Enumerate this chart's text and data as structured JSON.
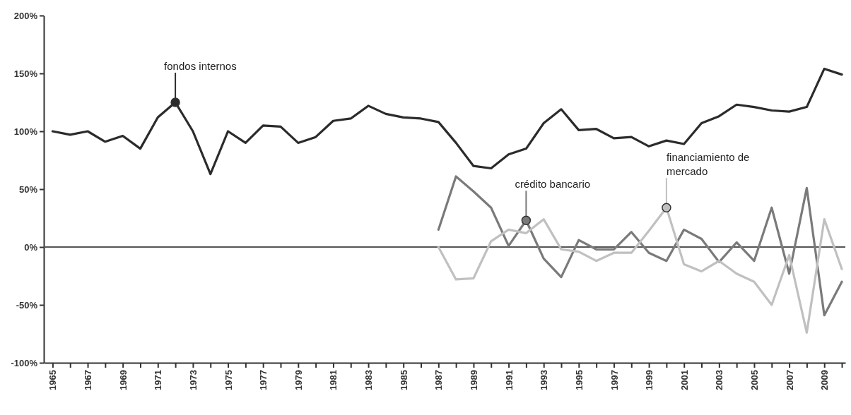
{
  "chart_data": {
    "type": "line",
    "x": [
      1965,
      1966,
      1967,
      1968,
      1969,
      1970,
      1971,
      1972,
      1973,
      1974,
      1975,
      1976,
      1977,
      1978,
      1979,
      1980,
      1981,
      1982,
      1983,
      1984,
      1985,
      1986,
      1987,
      1988,
      1989,
      1990,
      1991,
      1992,
      1993,
      1994,
      1995,
      1996,
      1997,
      1998,
      1999,
      2000,
      2001,
      2002,
      2003,
      2004,
      2005,
      2006,
      2007,
      2008,
      2009,
      2010
    ],
    "series": [
      {
        "color": "#2b2b2b",
        "values": [
          100,
          97,
          100,
          91,
          96,
          85,
          112,
          125,
          100,
          63,
          100,
          90,
          105,
          104,
          90,
          95,
          109,
          111,
          122,
          115,
          112,
          111,
          108,
          90,
          70,
          68,
          80,
          85,
          107,
          119,
          101,
          102,
          94,
          95,
          87,
          92,
          89,
          107,
          113,
          123,
          121,
          118,
          117,
          121,
          154,
          149
        ]
      },
      {
        "color": "#7a7a7a",
        "values": [
          null,
          null,
          null,
          null,
          null,
          null,
          null,
          null,
          null,
          null,
          null,
          null,
          null,
          null,
          null,
          null,
          null,
          null,
          null,
          null,
          null,
          null,
          15,
          61,
          48,
          34,
          1,
          23,
          -10,
          -26,
          6,
          -2,
          -2,
          13,
          -5,
          -12,
          15,
          7,
          -13,
          4,
          -12,
          34,
          -23,
          51,
          -59,
          -30
        ]
      },
      {
        "color": "#c0c0c0",
        "values": [
          null,
          null,
          null,
          null,
          null,
          null,
          null,
          null,
          null,
          null,
          null,
          null,
          null,
          null,
          null,
          null,
          null,
          null,
          null,
          null,
          null,
          null,
          0,
          -28,
          -27,
          5,
          15,
          12,
          24,
          -2,
          -4,
          -12,
          -5,
          -5,
          14,
          34,
          -15,
          -21,
          -12,
          -23,
          -30,
          -50,
          -7,
          -74,
          24,
          -19
        ]
      }
    ],
    "xlim": [
      1964.5,
      2010.2
    ],
    "xticks": [
      1965,
      {
        "value": 1966,
        "label": null
      },
      1967,
      {
        "value": 1968,
        "label": null
      },
      1969,
      {
        "value": 1970,
        "label": null
      },
      1971,
      {
        "value": 1972,
        "label": null
      },
      1973,
      {
        "value": 1974,
        "label": null
      },
      1975,
      {
        "value": 1976,
        "label": null
      },
      1977,
      {
        "value": 1978,
        "label": null
      },
      1979,
      {
        "value": 1980,
        "label": null
      },
      1981,
      {
        "value": 1982,
        "label": null
      },
      1983,
      {
        "value": 1984,
        "label": null
      },
      1985,
      {
        "value": 1986,
        "label": null
      },
      1987,
      {
        "value": 1988,
        "label": null
      },
      1989,
      {
        "value": 1990,
        "label": null
      },
      1991,
      {
        "value": 1992,
        "label": null
      },
      1993,
      {
        "value": 1994,
        "label": null
      },
      1995,
      {
        "value": 1996,
        "label": null
      },
      1997,
      {
        "value": 1998,
        "label": null
      },
      1999,
      {
        "value": 2000,
        "label": null
      },
      2001,
      {
        "value": 2002,
        "label": null
      },
      2003,
      {
        "value": 2004,
        "label": null
      },
      2005,
      {
        "value": 2006,
        "label": null
      },
      2007,
      {
        "value": 2008,
        "label": null
      },
      2009,
      {
        "value": 2010,
        "label": null
      }
    ],
    "ylim": [
      -100,
      200
    ],
    "yticks": [
      {
        "value": -100,
        "label": "-100%"
      },
      {
        "value": -50,
        "label": "-50%"
      },
      {
        "value": 0,
        "label": "0%"
      },
      {
        "value": 50,
        "label": "50%"
      },
      {
        "value": 100,
        "label": "100%"
      },
      {
        "value": 150,
        "label": "150%"
      },
      {
        "value": 200,
        "label": "200%"
      }
    ],
    "ref_lines": [
      {
        "axis": "y",
        "value": 0,
        "label": null,
        "color": "#555555"
      }
    ],
    "annotations": [
      {
        "text": "fondos internos",
        "x": 1972,
        "y": 125
      },
      {
        "text": "crédito bancario",
        "x": 1992,
        "y": 23
      },
      {
        "text": "financiamiento de\nmercado",
        "x": 2000,
        "y": 34
      }
    ],
    "grid": false,
    "marker": "none",
    "line_style": "solid"
  }
}
